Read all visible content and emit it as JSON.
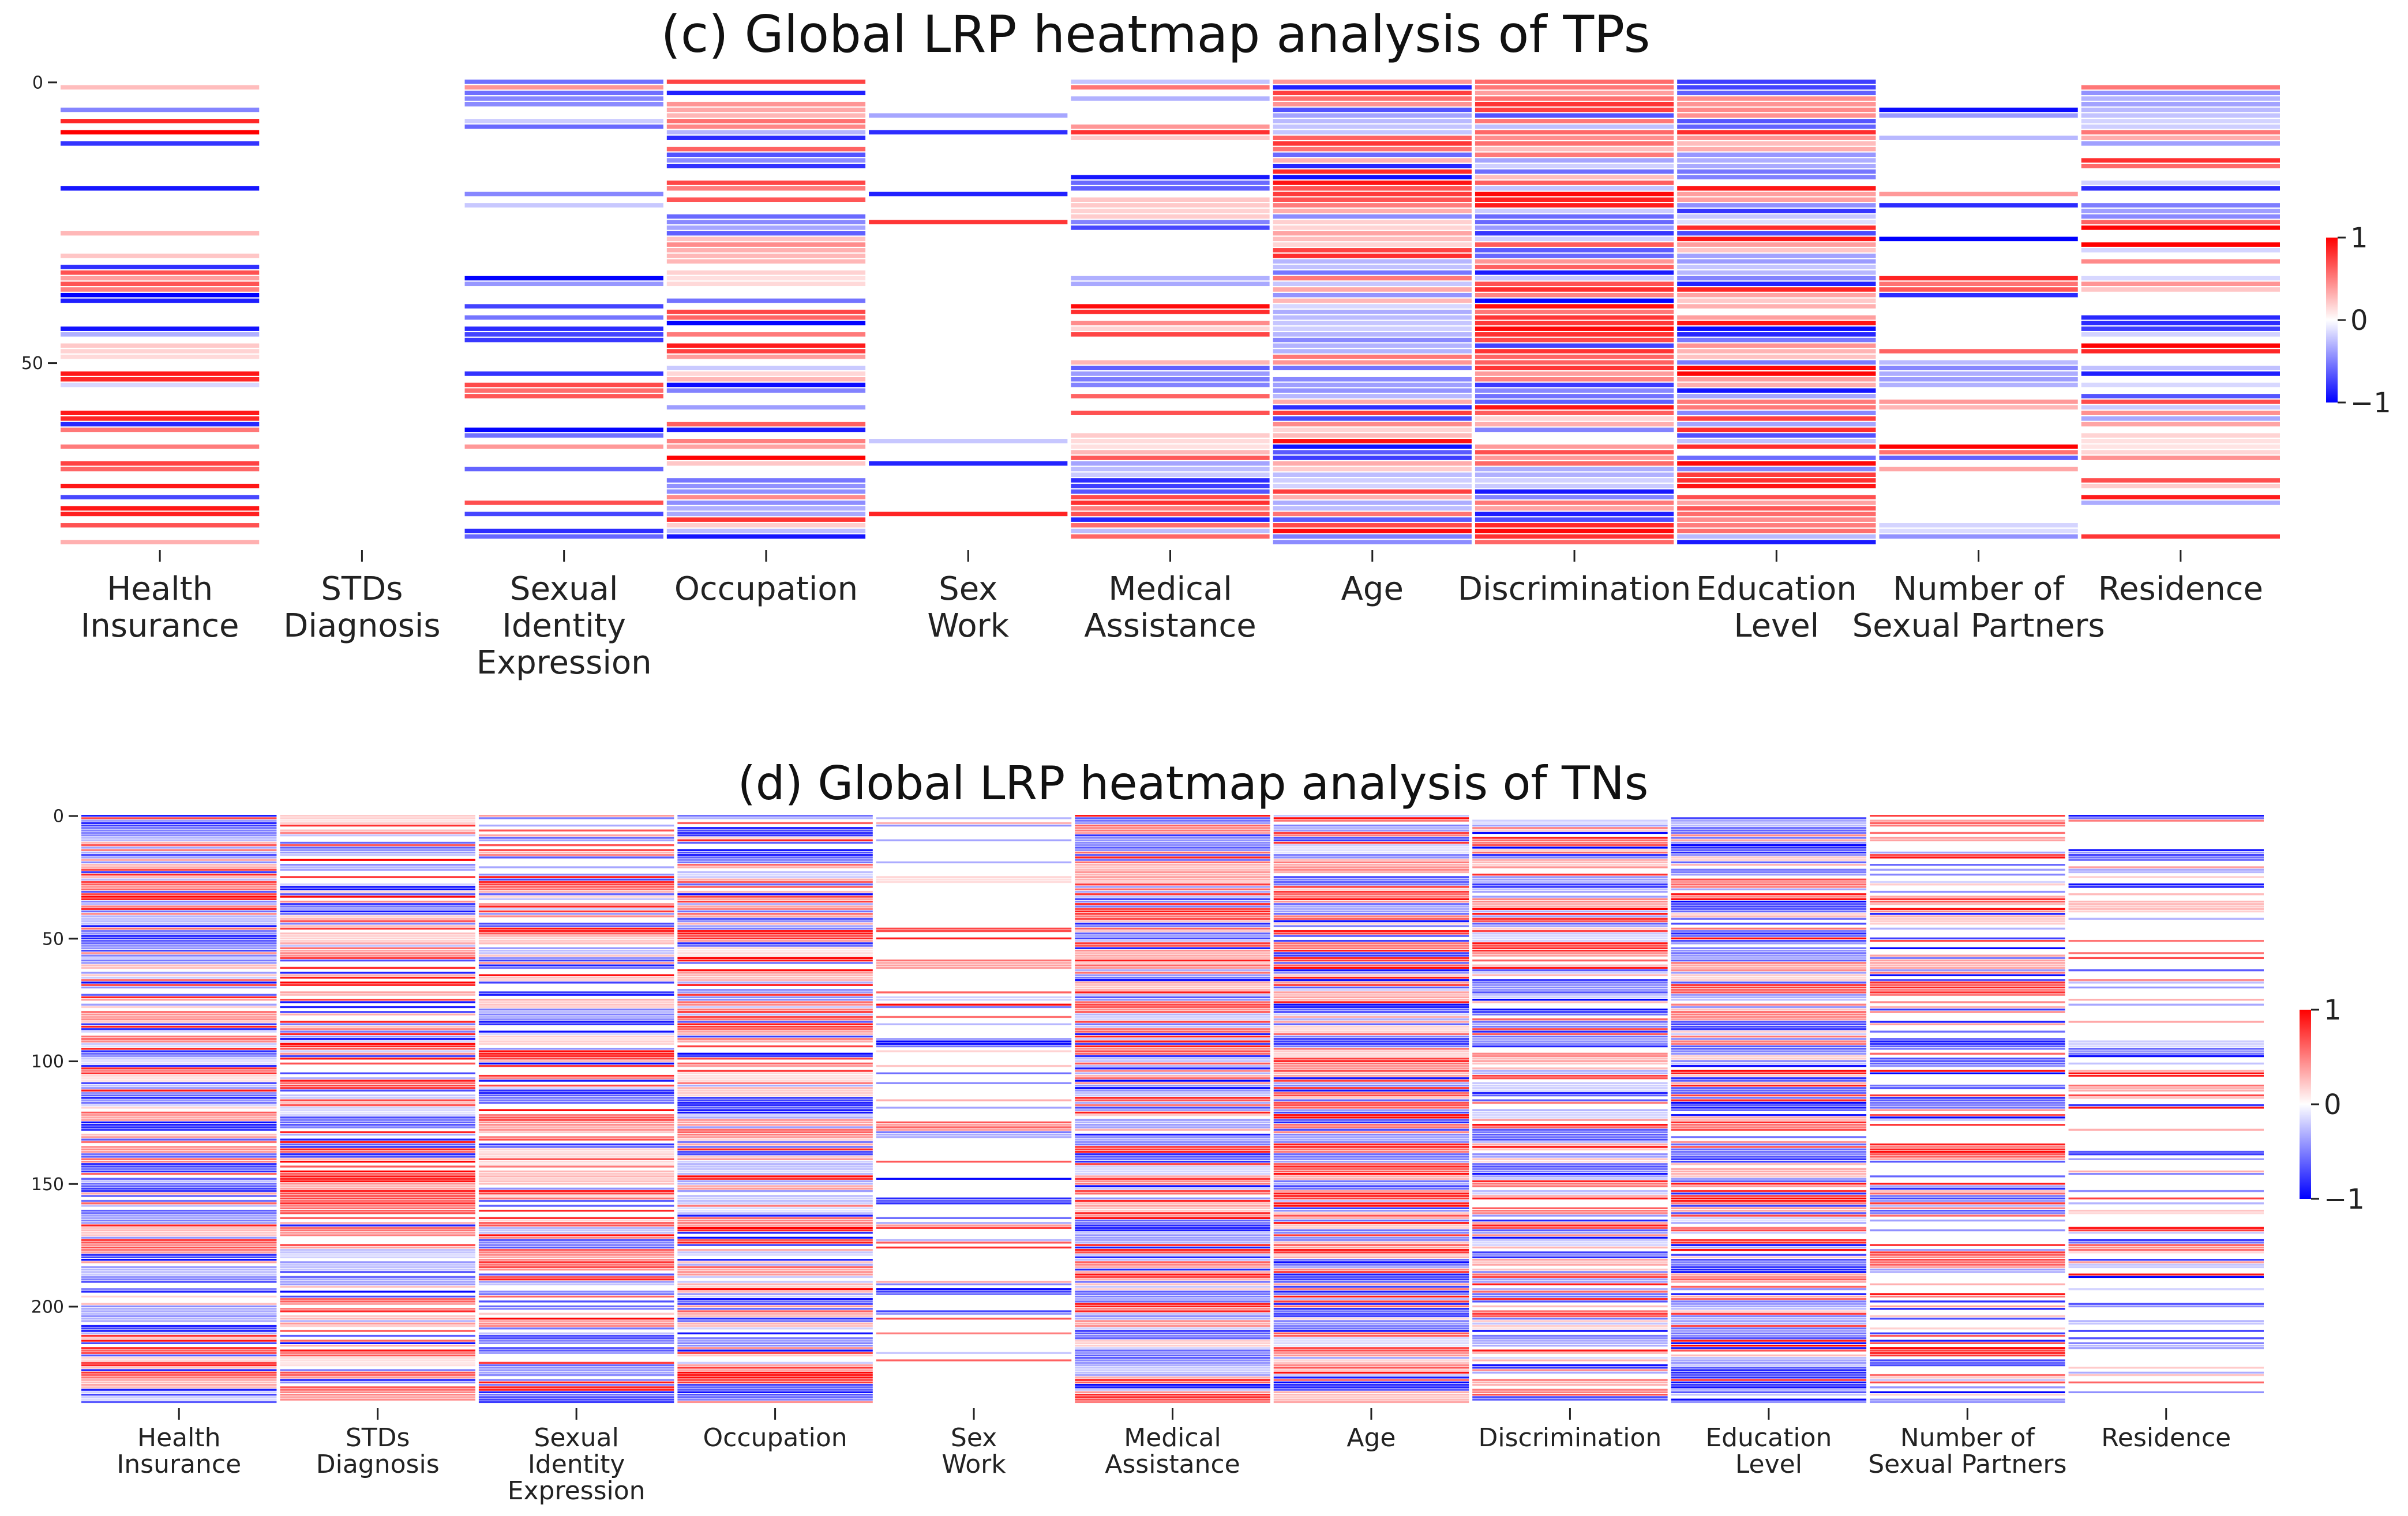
{
  "chart_data": [
    {
      "type": "heatmap",
      "panel": "c",
      "title": "(c) Global LRP heatmap analysis of TPs",
      "xlabel": "",
      "ylabel": "",
      "n_rows": 83,
      "y_ticks": [
        0,
        50
      ],
      "y_tick_labels": [
        "0",
        "50"
      ],
      "columns": [
        {
          "label": [
            "Health",
            "Insurance"
          ],
          "density": 0.45,
          "pos_bias": 0.7,
          "seed": 11
        },
        {
          "label": [
            "STDs",
            "Diagnosis"
          ],
          "density": 0.0,
          "pos_bias": 0.5,
          "seed": 12
        },
        {
          "label": [
            "Sexual",
            "Identity",
            "Expression"
          ],
          "density": 0.35,
          "pos_bias": 0.35,
          "seed": 13
        },
        {
          "label": [
            "Occupation"
          ],
          "density": 0.6,
          "pos_bias": 0.55,
          "seed": 14
        },
        {
          "label": [
            "Sex",
            "Work"
          ],
          "density": 0.1,
          "pos_bias": 0.45,
          "seed": 15
        },
        {
          "label": [
            "Medical",
            "Assistance"
          ],
          "density": 0.6,
          "pos_bias": 0.6,
          "seed": 16
        },
        {
          "label": [
            "Age"
          ],
          "density": 0.95,
          "pos_bias": 0.5,
          "seed": 17
        },
        {
          "label": [
            "Discrimination"
          ],
          "density": 0.95,
          "pos_bias": 0.6,
          "seed": 18
        },
        {
          "label": [
            "Education",
            "Level"
          ],
          "density": 0.95,
          "pos_bias": 0.65,
          "seed": 19
        },
        {
          "label": [
            "Number of",
            "Sexual Partners"
          ],
          "density": 0.3,
          "pos_bias": 0.6,
          "seed": 20
        },
        {
          "label": [
            "Residence"
          ],
          "density": 0.55,
          "pos_bias": 0.45,
          "seed": 21
        }
      ],
      "colorbar": {
        "cmap": "bwr",
        "min": -1,
        "max": 1,
        "ticks": [
          "1",
          "0",
          "−1"
        ]
      }
    },
    {
      "type": "heatmap",
      "panel": "d",
      "title": "(d) Global LRP heatmap analysis of TNs",
      "xlabel": "",
      "ylabel": "",
      "n_rows": 240,
      "y_ticks": [
        0,
        50,
        100,
        150,
        200
      ],
      "y_tick_labels": [
        "0",
        "50",
        "100",
        "150",
        "200"
      ],
      "columns": [
        {
          "label": [
            "Health",
            "Insurance"
          ],
          "density": 0.85,
          "pos_bias": 0.45,
          "seed": 31
        },
        {
          "label": [
            "STDs",
            "Diagnosis"
          ],
          "density": 0.7,
          "pos_bias": 0.55,
          "seed": 32
        },
        {
          "label": [
            "Sexual",
            "Identity",
            "Expression"
          ],
          "density": 0.7,
          "pos_bias": 0.6,
          "seed": 33
        },
        {
          "label": [
            "Occupation"
          ],
          "density": 0.85,
          "pos_bias": 0.5,
          "seed": 34
        },
        {
          "label": [
            "Sex",
            "Work"
          ],
          "density": 0.2,
          "pos_bias": 0.4,
          "seed": 35
        },
        {
          "label": [
            "Medical",
            "Assistance"
          ],
          "density": 0.97,
          "pos_bias": 0.5,
          "seed": 36
        },
        {
          "label": [
            "Age"
          ],
          "density": 0.97,
          "pos_bias": 0.55,
          "seed": 37
        },
        {
          "label": [
            "Discrimination"
          ],
          "density": 0.85,
          "pos_bias": 0.5,
          "seed": 38
        },
        {
          "label": [
            "Education",
            "Level"
          ],
          "density": 0.9,
          "pos_bias": 0.45,
          "seed": 39
        },
        {
          "label": [
            "Number of",
            "Sexual Partners"
          ],
          "density": 0.5,
          "pos_bias": 0.5,
          "seed": 40
        },
        {
          "label": [
            "Residence"
          ],
          "density": 0.4,
          "pos_bias": 0.5,
          "seed": 41
        }
      ],
      "colorbar": {
        "cmap": "bwr",
        "min": -1,
        "max": 1,
        "ticks": [
          "1",
          "0",
          "−1"
        ]
      }
    }
  ]
}
